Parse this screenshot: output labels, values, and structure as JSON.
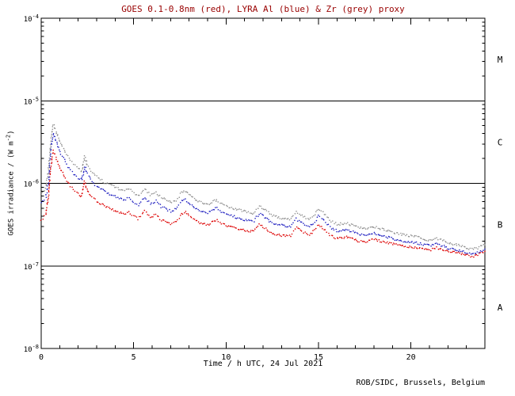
{
  "footer": {
    "credit": "ROB/SIDC, Brussels, Belgium"
  },
  "chart_data": {
    "type": "line",
    "title": "GOES 0.1-0.8nm (red), LYRA Al (blue) & Zr (grey) proxy",
    "title_color": "#990000",
    "xlabel": "Time / h UTC, 24 Jul 2021",
    "ylabel": {
      "prefix": "GOES irradiance / (W m",
      "sup": "-2",
      "suffix": ")"
    },
    "x_axis": {
      "min": 0,
      "max": 24,
      "major_ticks": [
        0,
        5,
        10,
        15,
        20
      ],
      "minor_step": 1
    },
    "y_axis": {
      "scale": "log",
      "min_exp": -8,
      "max_exp": -4,
      "tick_exps": [
        -4,
        -5,
        -6,
        -7,
        -8
      ]
    },
    "hline_exps": [
      -5,
      -6,
      -7
    ],
    "flare_classes": [
      {
        "label": "M",
        "band_exps": [
          -5,
          -4
        ]
      },
      {
        "label": "C",
        "band_exps": [
          -6,
          -5
        ]
      },
      {
        "label": "B",
        "band_exps": [
          -7,
          -6
        ]
      },
      {
        "label": "A",
        "band_exps": [
          -8,
          -7
        ]
      }
    ],
    "grid": false,
    "x": [
      0,
      0.25,
      0.4,
      0.55,
      0.65,
      0.8,
      1,
      1.25,
      1.5,
      1.75,
      2,
      2.2,
      2.35,
      2.5,
      2.75,
      3,
      3.5,
      4,
      4.5,
      4.75,
      5,
      5.25,
      5.6,
      5.9,
      6.2,
      6.5,
      7,
      7.3,
      7.6,
      7.8,
      8,
      8.5,
      9,
      9.3,
      9.5,
      9.75,
      10,
      10.5,
      11,
      11.5,
      11.8,
      12,
      12.5,
      13,
      13.5,
      13.8,
      14.1,
      14.5,
      14.8,
      15,
      15.3,
      15.7,
      16,
      16.5,
      17,
      17.5,
      18,
      18.5,
      19,
      19.5,
      20,
      20.5,
      21,
      21.4,
      21.7,
      22,
      22.5,
      23,
      23.3,
      23.6,
      24
    ],
    "series": [
      {
        "id": "goes-xray",
        "name": "GOES 0.1-0.8nm",
        "color": "#dd0000",
        "values": [
          3.6e-07,
          4.2e-07,
          7e-07,
          1.8e-06,
          2.5e-06,
          2.1e-06,
          1.55e-06,
          1.2e-06,
          9.8e-07,
          8.4e-07,
          7.4e-07,
          7e-07,
          1.05e-06,
          8.2e-07,
          6.8e-07,
          6.1e-07,
          5.2e-07,
          4.6e-07,
          4.2e-07,
          4.5e-07,
          4e-07,
          3.7e-07,
          4.6e-07,
          3.9e-07,
          4.2e-07,
          3.6e-07,
          3.2e-07,
          3.4e-07,
          4.3e-07,
          4.5e-07,
          4e-07,
          3.4e-07,
          3.1e-07,
          3.5e-07,
          3.6e-07,
          3.3e-07,
          3.1e-07,
          2.9e-07,
          2.7e-07,
          2.6e-07,
          3.2e-07,
          3e-07,
          2.5e-07,
          2.35e-07,
          2.3e-07,
          2.9e-07,
          2.6e-07,
          2.35e-07,
          2.7e-07,
          3.2e-07,
          2.8e-07,
          2.3e-07,
          2.15e-07,
          2.25e-07,
          2.05e-07,
          1.95e-07,
          2.1e-07,
          1.95e-07,
          1.85e-07,
          1.75e-07,
          1.7e-07,
          1.65e-07,
          1.55e-07,
          1.65e-07,
          1.6e-07,
          1.5e-07,
          1.45e-07,
          1.35e-07,
          1.3e-07,
          1.35e-07,
          1.5e-07
        ]
      },
      {
        "id": "lyra-al",
        "name": "LYRA Al proxy",
        "color": "#2020c0",
        "values": [
          5.8e-07,
          6.7e-07,
          1.1e-06,
          2.9e-06,
          4e-06,
          3.3e-06,
          2.4e-06,
          1.9e-06,
          1.5e-06,
          1.3e-06,
          1.15e-06,
          1.1e-06,
          1.6e-06,
          1.3e-06,
          1.05e-06,
          9.3e-07,
          7.9e-07,
          6.9e-07,
          6.3e-07,
          6.7e-07,
          5.9e-07,
          5.5e-07,
          6.8e-07,
          5.7e-07,
          6.1e-07,
          5.2e-07,
          4.6e-07,
          4.9e-07,
          6.1e-07,
          6.4e-07,
          5.7e-07,
          4.8e-07,
          4.3e-07,
          4.9e-07,
          5e-07,
          4.5e-07,
          4.3e-07,
          3.9e-07,
          3.6e-07,
          3.5e-07,
          4.3e-07,
          4e-07,
          3.3e-07,
          3.1e-07,
          3e-07,
          3.7e-07,
          3.3e-07,
          3e-07,
          3.4e-07,
          4e-07,
          3.5e-07,
          2.85e-07,
          2.65e-07,
          2.75e-07,
          2.5e-07,
          2.35e-07,
          2.5e-07,
          2.3e-07,
          2.15e-07,
          2e-07,
          1.95e-07,
          1.85e-07,
          1.75e-07,
          1.85e-07,
          1.75e-07,
          1.65e-07,
          1.55e-07,
          1.45e-07,
          1.4e-07,
          1.45e-07,
          1.6e-07
        ]
      },
      {
        "id": "lyra-zr",
        "name": "LYRA Zr proxy",
        "color": "#909090",
        "values": [
          7.6e-07,
          8.8e-07,
          1.5e-06,
          3.7e-06,
          5.2e-06,
          4.3e-06,
          3.2e-06,
          2.5e-06,
          2e-06,
          1.7e-06,
          1.5e-06,
          1.4e-06,
          2.1e-06,
          1.65e-06,
          1.35e-06,
          1.2e-06,
          1e-06,
          9e-07,
          8.1e-07,
          8.6e-07,
          7.7e-07,
          7e-07,
          8.7e-07,
          7.3e-07,
          7.8e-07,
          6.7e-07,
          5.9e-07,
          6.2e-07,
          7.8e-07,
          8.1e-07,
          7.2e-07,
          6.1e-07,
          5.5e-07,
          6.1e-07,
          6.3e-07,
          5.7e-07,
          5.3e-07,
          4.9e-07,
          4.6e-07,
          4.3e-07,
          5.3e-07,
          5e-07,
          4.1e-07,
          3.8e-07,
          3.7e-07,
          4.6e-07,
          4.1e-07,
          3.65e-07,
          4.2e-07,
          4.9e-07,
          4.3e-07,
          3.5e-07,
          3.2e-07,
          3.3e-07,
          3e-07,
          2.8e-07,
          3e-07,
          2.75e-07,
          2.55e-07,
          2.4e-07,
          2.3e-07,
          2.2e-07,
          2.05e-07,
          2.15e-07,
          2.05e-07,
          1.9e-07,
          1.8e-07,
          1.65e-07,
          1.6e-07,
          1.65e-07,
          1.8e-07
        ]
      }
    ]
  }
}
